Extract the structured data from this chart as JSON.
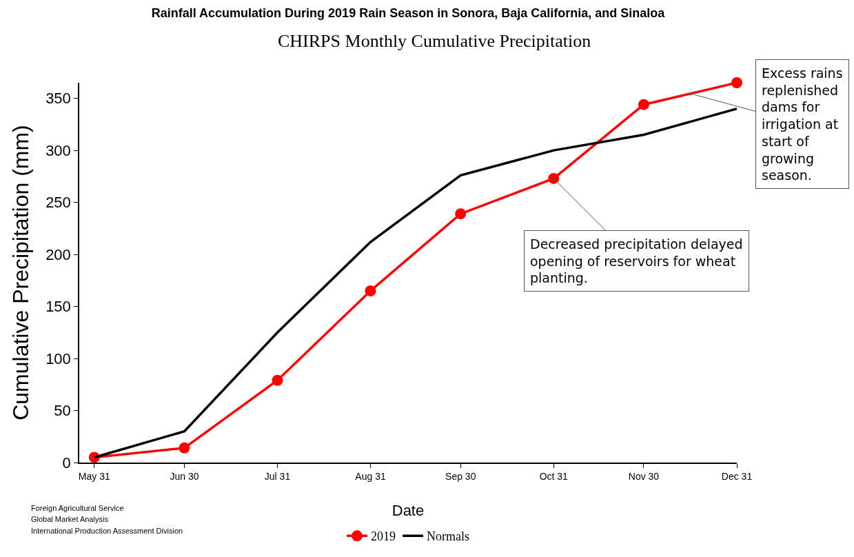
{
  "chart_data": {
    "type": "line",
    "title": "Rainfall Accumulation During 2019 Rain Season in Sonora, Baja California, and Sinaloa",
    "subtitle": "CHIRPS Monthly Cumulative Precipitation",
    "xlabel": "Date",
    "ylabel": "Cumulative Precipitation (mm)",
    "x": [
      "2019-05-31",
      "2019-06-30",
      "2019-07-31",
      "2019-08-31",
      "2019-09-30",
      "2019-10-31",
      "2019-11-30",
      "2019-12-31"
    ],
    "series": [
      {
        "name": "2019",
        "color": "#ff0000",
        "marker": "circle",
        "values": [
          5,
          14,
          79,
          165,
          239,
          273,
          344,
          365
        ]
      },
      {
        "name": "Normals",
        "color": "#000000",
        "marker": "none",
        "values": [
          5,
          30,
          125,
          212,
          276,
          300,
          315,
          340
        ]
      }
    ],
    "xlim": [
      "2019-05-26",
      "2019-12-31"
    ],
    "xticks": [
      {
        "value": "2019-05-31",
        "label": "May 31"
      },
      {
        "value": "2019-06-30",
        "label": "Jun 30"
      },
      {
        "value": "2019-07-31",
        "label": "Jul 31"
      },
      {
        "value": "2019-08-31",
        "label": "Aug 31"
      },
      {
        "value": "2019-09-30",
        "label": "Sep 30"
      },
      {
        "value": "2019-10-31",
        "label": "Oct 31"
      },
      {
        "value": "2019-11-30",
        "label": "Nov 30"
      },
      {
        "value": "2019-12-31",
        "label": "Dec 31"
      }
    ],
    "ylim": [
      0,
      365
    ],
    "yticks": [
      0,
      50,
      100,
      150,
      200,
      250,
      300,
      350
    ],
    "grid": false,
    "legend": "bottom",
    "annotations": [
      {
        "text": "Excess rains replenished dams for irrigation at start of growing season.",
        "x": "2019-12-15",
        "y": 355
      },
      {
        "text": "Decreased precipitation delayed opening of reservoirs for wheat planting.",
        "x": "2019-10-31",
        "y": 273
      },
      "Foreign Agricultural Service",
      "Global Market Analysis",
      "International Production Assessment Division"
    ]
  }
}
